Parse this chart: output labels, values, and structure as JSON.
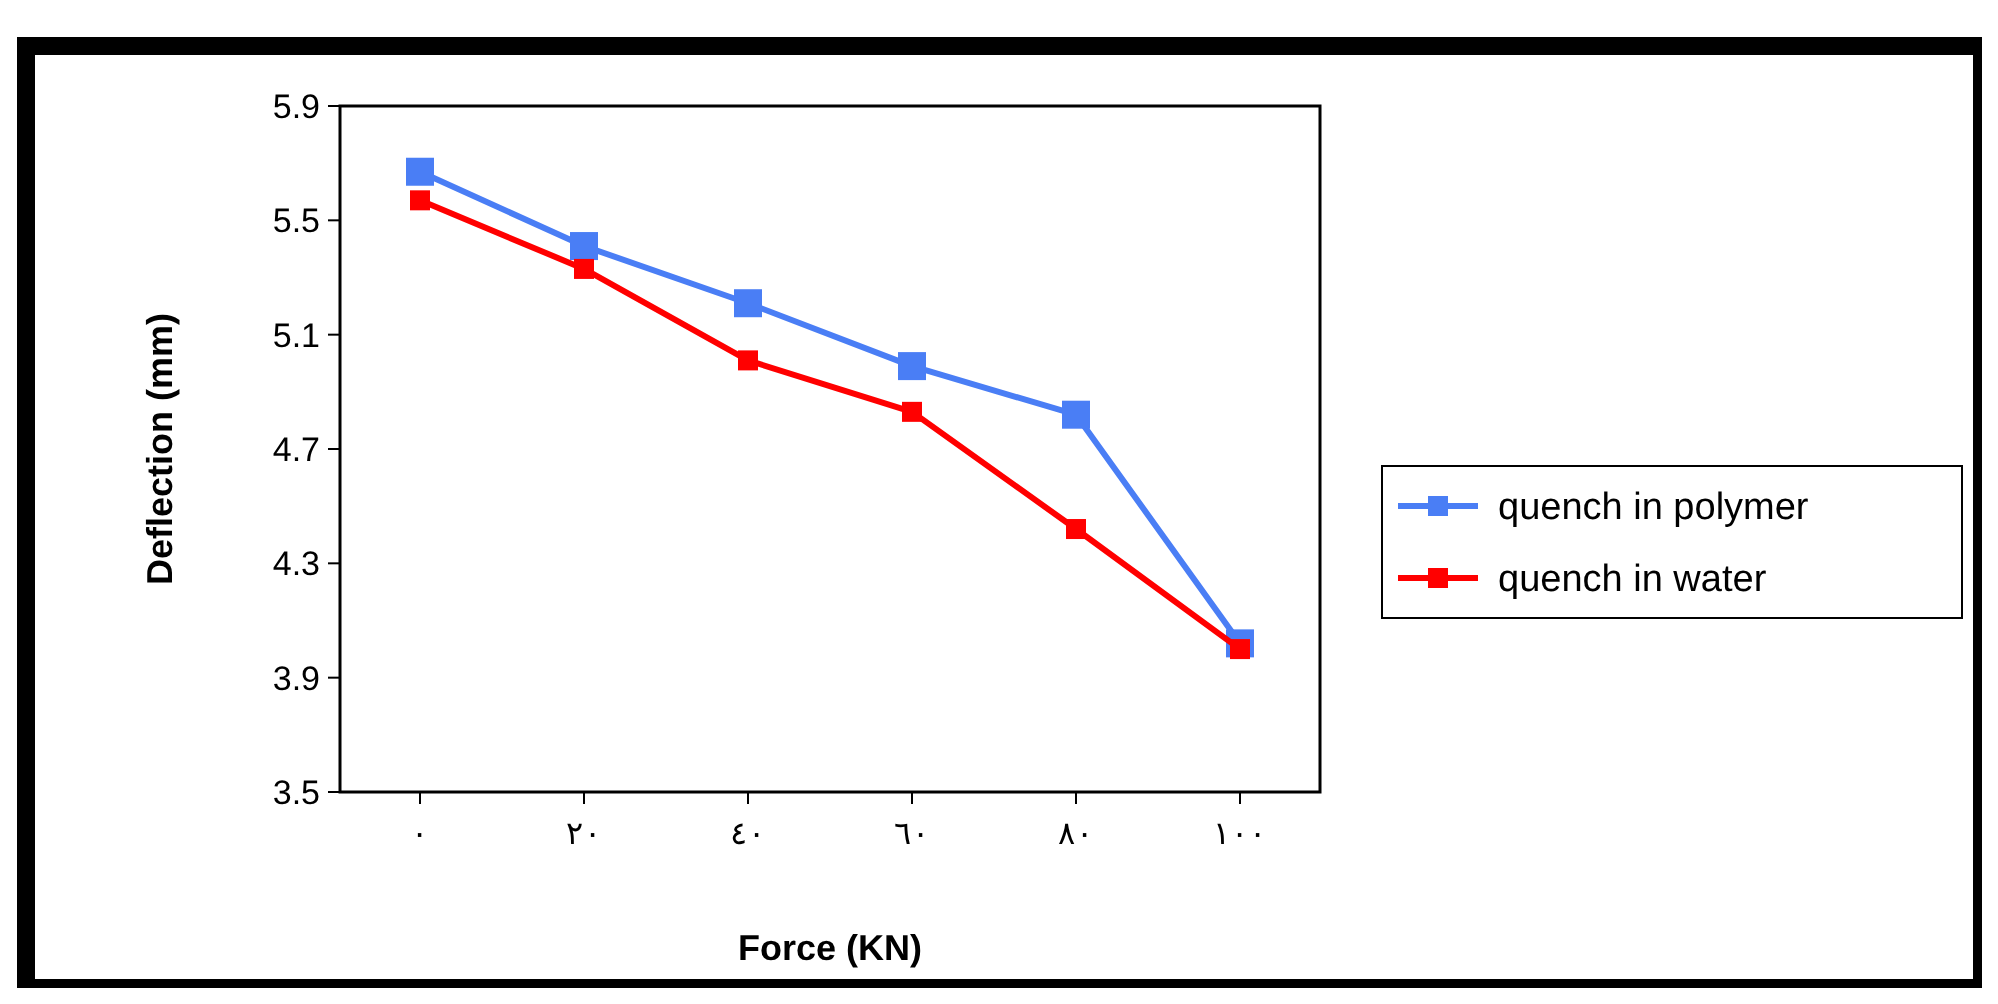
{
  "chart_data": {
    "type": "line",
    "xlabel": "Force (KN)",
    "ylabel": "Deflection (mm)",
    "categories": [
      "٠",
      "٢٠",
      "٤٠",
      "٦٠",
      "٨٠",
      "١٠٠"
    ],
    "series": [
      {
        "name": "quench in polymer",
        "color": "#4a7ef5",
        "values": [
          5.67,
          5.41,
          5.21,
          4.99,
          4.82,
          4.02
        ]
      },
      {
        "name": "quench in water",
        "color": "#ff0000",
        "values": [
          5.57,
          5.33,
          5.01,
          4.83,
          4.42,
          4.0
        ]
      }
    ],
    "ylim": [
      3.5,
      5.9
    ],
    "yticks": [
      3.5,
      3.9,
      4.3,
      4.7,
      5.1,
      5.5,
      5.9
    ],
    "grid": false,
    "legend": "right",
    "marker": "square",
    "line_style": "solid"
  }
}
